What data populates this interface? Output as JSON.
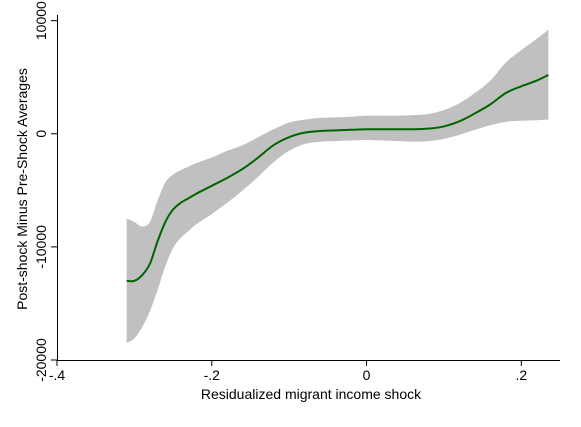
{
  "chart_data": {
    "type": "line",
    "title": "",
    "xlabel": "Residualized migrant income shock",
    "ylabel": "Post-shock Minus Pre-Shock Averages",
    "xlim": [
      -0.4,
      0.25
    ],
    "ylim": [
      -20000,
      10500
    ],
    "x_ticks": [
      -0.4,
      -0.2,
      0,
      0.2
    ],
    "x_tick_labels": [
      "-.4",
      "-.2",
      "0",
      ".2"
    ],
    "y_ticks": [
      -20000,
      -10000,
      0,
      10000
    ],
    "y_tick_labels": [
      "-20000",
      "-10000",
      "0",
      "10000"
    ],
    "grid": false,
    "legend": "none",
    "series": [
      {
        "line_color": "#006400",
        "band_color": "#c0c0c0",
        "x": [
          -0.31,
          -0.3,
          -0.29,
          -0.28,
          -0.27,
          -0.26,
          -0.25,
          -0.24,
          -0.23,
          -0.22,
          -0.2,
          -0.18,
          -0.16,
          -0.14,
          -0.12,
          -0.1,
          -0.08,
          -0.06,
          -0.04,
          -0.02,
          0.0,
          0.02,
          0.04,
          0.06,
          0.08,
          0.1,
          0.12,
          0.14,
          0.16,
          0.18,
          0.2,
          0.22,
          0.235
        ],
        "y": [
          -13000,
          -13000,
          -12500,
          -11500,
          -9500,
          -7800,
          -6700,
          -6100,
          -5700,
          -5300,
          -4600,
          -3900,
          -3100,
          -2100,
          -1000,
          -300,
          100,
          250,
          300,
          350,
          400,
          400,
          400,
          400,
          450,
          650,
          1100,
          1800,
          2600,
          3600,
          4200,
          4700,
          5200
        ],
        "lower": [
          -18500,
          -18100,
          -17100,
          -15700,
          -13800,
          -11700,
          -10100,
          -9200,
          -8600,
          -8000,
          -7100,
          -6100,
          -5000,
          -3800,
          -2500,
          -1500,
          -900,
          -700,
          -650,
          -600,
          -550,
          -600,
          -650,
          -700,
          -650,
          -450,
          -100,
          350,
          750,
          1050,
          1150,
          1200,
          1250
        ],
        "upper": [
          -7500,
          -7800,
          -8200,
          -7800,
          -5900,
          -4300,
          -3600,
          -3200,
          -2900,
          -2600,
          -2100,
          -1500,
          -1000,
          -300,
          400,
          1000,
          1250,
          1400,
          1450,
          1500,
          1600,
          1600,
          1600,
          1650,
          1750,
          2100,
          2700,
          3600,
          4700,
          6300,
          7400,
          8400,
          9200
        ]
      }
    ]
  }
}
